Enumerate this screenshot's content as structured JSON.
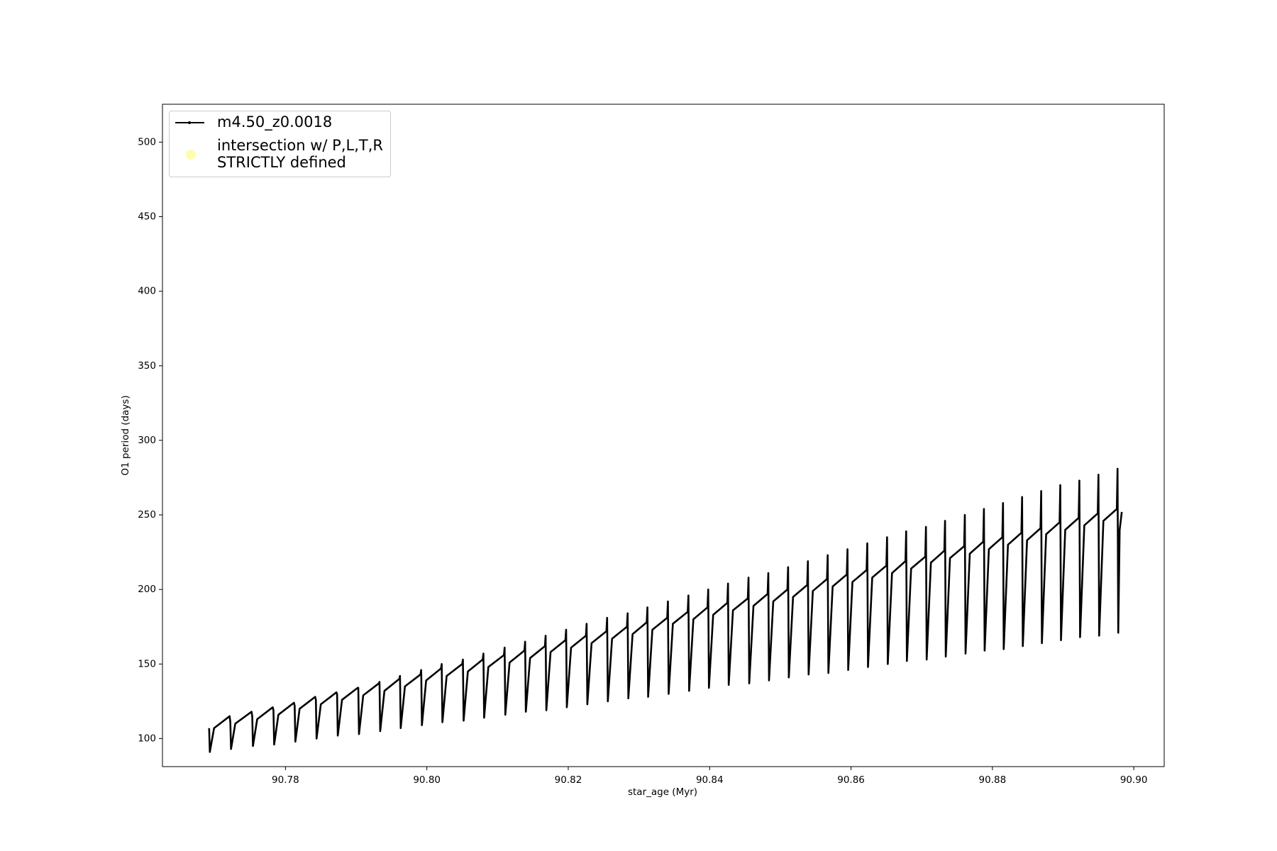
{
  "chart_data": {
    "type": "line",
    "xlabel": "star_age (Myr)",
    "ylabel": "O1 period (days)",
    "xlim": [
      90.7626,
      90.9043
    ],
    "ylim": [
      81.2,
      525.4
    ],
    "xticks": [
      90.78,
      {
        "value": 90.8,
        "label": "90.80"
      },
      90.82,
      90.84,
      90.86,
      90.88,
      {
        "value": 90.9,
        "label": "90.90"
      }
    ],
    "yticks": [
      100,
      150,
      200,
      250,
      300,
      350,
      400,
      450,
      500
    ],
    "legend": "upper left",
    "series": [
      {
        "name": "m4.50_z0.0018",
        "color": "#000000",
        "x": [
          90.7692,
          90.7693,
          90.7699,
          90.7721,
          90.7722,
          90.7723,
          90.7729,
          90.7752,
          90.7753,
          90.7754,
          90.776,
          90.7782,
          90.7783,
          90.7784,
          90.779,
          90.7812,
          90.7813,
          90.7814,
          90.782,
          90.7842,
          90.7843,
          90.7844,
          90.785,
          90.7872,
          90.7873,
          90.7874,
          90.788,
          90.7902,
          90.7903,
          90.7904,
          90.791,
          90.7932,
          90.7933,
          90.7934,
          90.794,
          90.7961,
          90.7962,
          90.7963,
          90.7969,
          90.7991,
          90.7992,
          90.7993,
          90.7999,
          90.802,
          90.8021,
          90.8022,
          90.8028,
          90.805,
          90.8051,
          90.8052,
          90.8058,
          90.8079,
          90.808,
          90.8081,
          90.8087,
          90.8109,
          90.811,
          90.8111,
          90.8117,
          90.8138,
          90.8139,
          90.814,
          90.8146,
          90.8167,
          90.8168,
          90.8169,
          90.8175,
          90.8196,
          90.8197,
          90.8198,
          90.8204,
          90.8225,
          90.8226,
          90.8227,
          90.8233,
          90.8254,
          90.8255,
          90.8256,
          90.8262,
          90.8283,
          90.8284,
          90.8285,
          90.8291,
          90.8311,
          90.8312,
          90.8313,
          90.8319,
          90.834,
          90.8341,
          90.8342,
          90.8348,
          90.8369,
          90.837,
          90.8371,
          90.8377,
          90.8397,
          90.8398,
          90.8399,
          90.8405,
          90.8425,
          90.8426,
          90.8427,
          90.8433,
          90.8454,
          90.8455,
          90.8456,
          90.8462,
          90.8482,
          90.8483,
          90.8484,
          90.849,
          90.851,
          90.8511,
          90.8512,
          90.8518,
          90.8538,
          90.8539,
          90.854,
          90.8546,
          90.8566,
          90.8567,
          90.8568,
          90.8574,
          90.8594,
          90.8595,
          90.8596,
          90.8602,
          90.8622,
          90.8623,
          90.8624,
          90.863,
          90.865,
          90.8651,
          90.8652,
          90.8658,
          90.8677,
          90.8678,
          90.8679,
          90.8685,
          90.8705,
          90.8706,
          90.8707,
          90.8713,
          90.8732,
          90.8733,
          90.8734,
          90.874,
          90.876,
          90.8761,
          90.8762,
          90.8768,
          90.8787,
          90.8788,
          90.8789,
          90.8795,
          90.8814,
          90.8815,
          90.8816,
          90.8822,
          90.8841,
          90.8842,
          90.8843,
          90.8849,
          90.8868,
          90.8869,
          90.887,
          90.8876,
          90.8895,
          90.8896,
          90.8897,
          90.8903,
          90.8922,
          90.8923,
          90.8924,
          90.893,
          90.8949,
          90.895,
          90.8951,
          90.8957,
          90.8976,
          90.8977,
          90.8978,
          90.898,
          90.8983
        ],
        "values": [
          107,
          91,
          107,
          115,
          111,
          93,
          110,
          118,
          115,
          95,
          113,
          121,
          119,
          96,
          116,
          124,
          122,
          98,
          120,
          128,
          126,
          100,
          123,
          131,
          130,
          102,
          126,
          134,
          134,
          103,
          129,
          137,
          138,
          105,
          132,
          140,
          142,
          107,
          135,
          143,
          146,
          109,
          139,
          147,
          150,
          111,
          142,
          150,
          153,
          112,
          145,
          153,
          157,
          114,
          148,
          156,
          161,
          116,
          151,
          159,
          165,
          118,
          154,
          162,
          169,
          119,
          158,
          166,
          173,
          121,
          161,
          169,
          177,
          123,
          164,
          172,
          181,
          125,
          167,
          175,
          184,
          127,
          170,
          178,
          188,
          128,
          173,
          181,
          192,
          130,
          177,
          185,
          196,
          132,
          180,
          188,
          200,
          134,
          183,
          191,
          204,
          136,
          186,
          194,
          208,
          137,
          189,
          197,
          211,
          139,
          192,
          200,
          215,
          141,
          195,
          203,
          219,
          143,
          199,
          207,
          223,
          144,
          202,
          210,
          227,
          146,
          205,
          213,
          231,
          148,
          208,
          216,
          235,
          150,
          211,
          219,
          239,
          152,
          214,
          222,
          242,
          153,
          218,
          226,
          246,
          155,
          221,
          229,
          250,
          157,
          224,
          232,
          254,
          159,
          227,
          235,
          258,
          160,
          230,
          238,
          262,
          162,
          233,
          241,
          266,
          164,
          237,
          245,
          270,
          166,
          240,
          248,
          273,
          168,
          243,
          251,
          277,
          169,
          246,
          254,
          281,
          171,
          240,
          252
        ]
      },
      {
        "name": "intersection w/ P,L,T,R\nSTRICTLY defined",
        "color": "#fdfdb0",
        "type": "scatter",
        "x": [],
        "values": []
      }
    ]
  }
}
